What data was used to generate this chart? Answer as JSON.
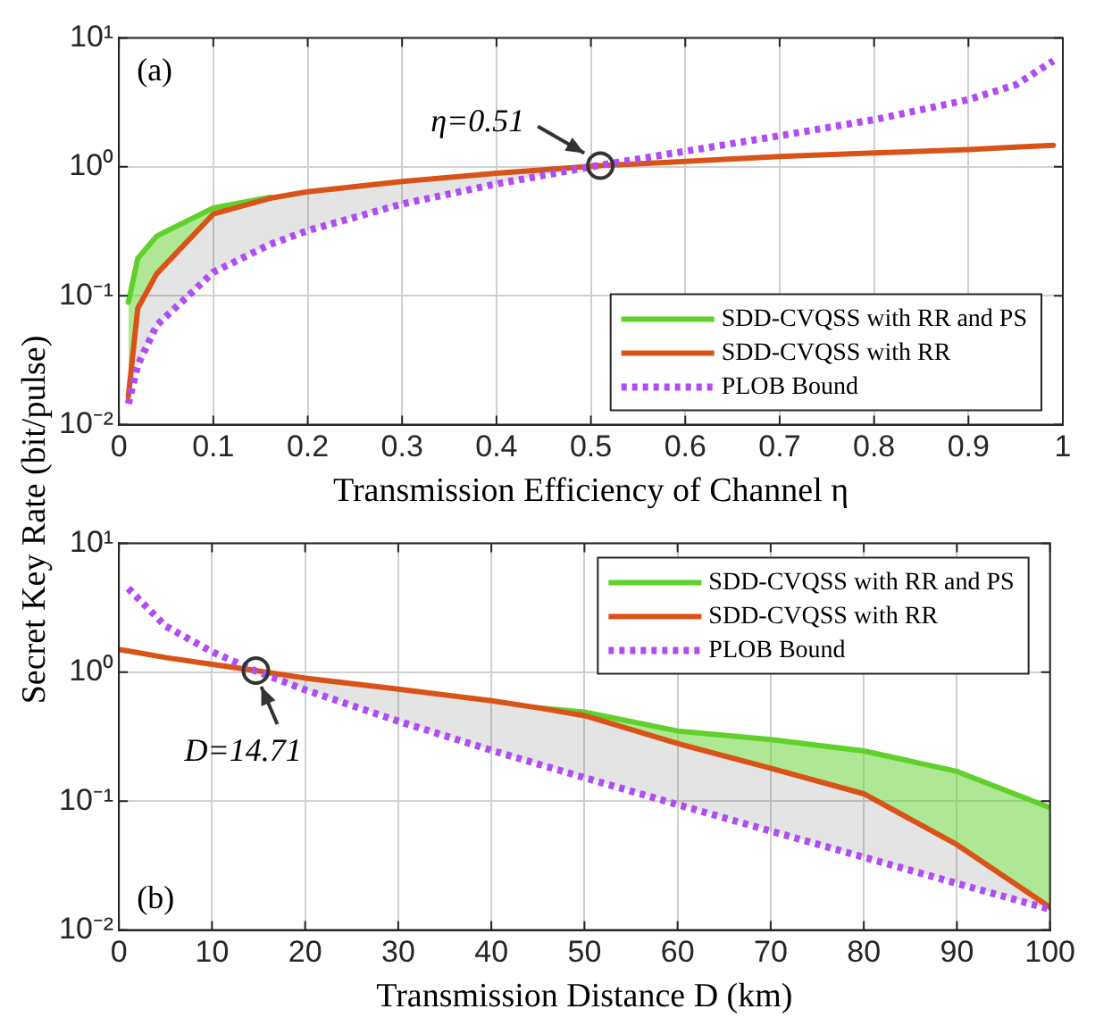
{
  "chart_data": [
    {
      "type": "line",
      "ylabel": "Secret Key Rate (bit/pulse)",
      "xlabel": "Transmission Efficiency of Channel η",
      "x": [
        0.01,
        0.02,
        0.04,
        0.1,
        0.16,
        0.2,
        0.3,
        0.4,
        0.51,
        0.6,
        0.7,
        0.8,
        0.9,
        0.95,
        0.99
      ],
      "series": [
        {
          "name": "SDD-CVQSS with RR and PS",
          "color": "#5fd12a",
          "line_style": "solid",
          "values": [
            0.089,
            0.195,
            0.29,
            0.48,
            0.58,
            null,
            null,
            null,
            null,
            null,
            null,
            null,
            null,
            null,
            null
          ],
          "lower": [
            0.0166,
            0.08,
            0.148,
            0.43,
            0.57,
            null,
            null,
            null,
            null,
            null,
            null,
            null,
            null,
            null,
            null
          ],
          "upper": [
            0.089,
            0.195,
            0.29,
            0.48,
            0.58,
            null,
            null,
            null,
            null,
            null,
            null,
            null,
            null,
            null,
            null
          ]
        },
        {
          "name": "SDD-CVQSS with RR",
          "color": "#d95319",
          "line_style": "solid",
          "values": [
            0.0166,
            0.08,
            0.148,
            0.43,
            0.57,
            0.64,
            0.77,
            0.89,
            1.02,
            1.1,
            1.2,
            1.28,
            1.36,
            1.42,
            1.47
          ]
        },
        {
          "name": "PLOB Bound",
          "color": "#b04cf5",
          "line_style": "dotted",
          "values": [
            0.0145,
            0.029,
            0.059,
            0.152,
            0.25,
            0.32,
            0.515,
            0.737,
            1.03,
            1.32,
            1.74,
            2.32,
            3.32,
            4.32,
            6.64
          ]
        }
      ],
      "xlim": [
        0,
        1
      ],
      "xticks": [
        0,
        0.1,
        0.2,
        0.3,
        0.4,
        0.5,
        0.6,
        0.7,
        0.8,
        0.9,
        1
      ],
      "ylim": [
        0.01,
        10
      ],
      "yticks": [
        {
          "value": 0.01,
          "label": "10⁻²"
        },
        {
          "value": 0.1,
          "label": "10⁻¹"
        },
        {
          "value": 1,
          "label": "10⁰"
        },
        {
          "value": 10,
          "label": "10¹"
        }
      ],
      "log": "y",
      "grid": true,
      "legend": "bottom right",
      "marker": "none",
      "annotations": [
        "(a)",
        {
          "text": "η=0.51",
          "x": 0.51,
          "y": 1.02
        }
      ]
    },
    {
      "type": "line",
      "xlabel": "Transmission Distance D (km)",
      "x": [
        0,
        1,
        5,
        10,
        14.71,
        20,
        30,
        40,
        45,
        50,
        60,
        70,
        80,
        90,
        100
      ],
      "series": [
        {
          "name": "SDD-CVQSS with RR and PS",
          "color": "#5fd12a",
          "line_style": "solid",
          "values": [
            null,
            null,
            null,
            null,
            null,
            null,
            null,
            null,
            0.53,
            0.49,
            0.35,
            0.3,
            0.245,
            0.17,
            0.089
          ],
          "lower": [
            null,
            null,
            null,
            null,
            null,
            null,
            null,
            null,
            0.53,
            0.46,
            0.28,
            0.18,
            0.114,
            0.046,
            0.015
          ],
          "upper": [
            null,
            null,
            null,
            null,
            null,
            null,
            null,
            null,
            0.53,
            0.49,
            0.35,
            0.3,
            0.245,
            0.17,
            0.089
          ]
        },
        {
          "name": "SDD-CVQSS with RR",
          "color": "#d95319",
          "line_style": "solid",
          "values": [
            1.5,
            1.46,
            1.3,
            1.15,
            1.03,
            0.9,
            0.74,
            0.6,
            0.53,
            0.46,
            0.28,
            0.18,
            0.114,
            0.046,
            0.015
          ]
        },
        {
          "name": "PLOB Bound",
          "color": "#b04cf5",
          "line_style": "dotted",
          "values": [
            null,
            4.47,
            2.28,
            1.44,
            1.02,
            0.73,
            0.417,
            0.248,
            0.194,
            0.152,
            0.094,
            0.0586,
            0.0367,
            0.023,
            0.0145
          ]
        }
      ],
      "xlim": [
        0,
        100
      ],
      "xticks": [
        0,
        10,
        20,
        30,
        40,
        50,
        60,
        70,
        80,
        90,
        100
      ],
      "ylim": [
        0.01,
        10
      ],
      "yticks": [
        {
          "value": 0.01,
          "label": "10⁻²"
        },
        {
          "value": 0.1,
          "label": "10⁻¹"
        },
        {
          "value": 1,
          "label": "10⁰"
        },
        {
          "value": 10,
          "label": "10¹"
        }
      ],
      "log": "y",
      "grid": true,
      "legend": "top right",
      "marker": "none",
      "annotations": [
        "(b)",
        {
          "text": "D=14.71",
          "x": 14.71,
          "y": 1.03
        }
      ]
    }
  ]
}
